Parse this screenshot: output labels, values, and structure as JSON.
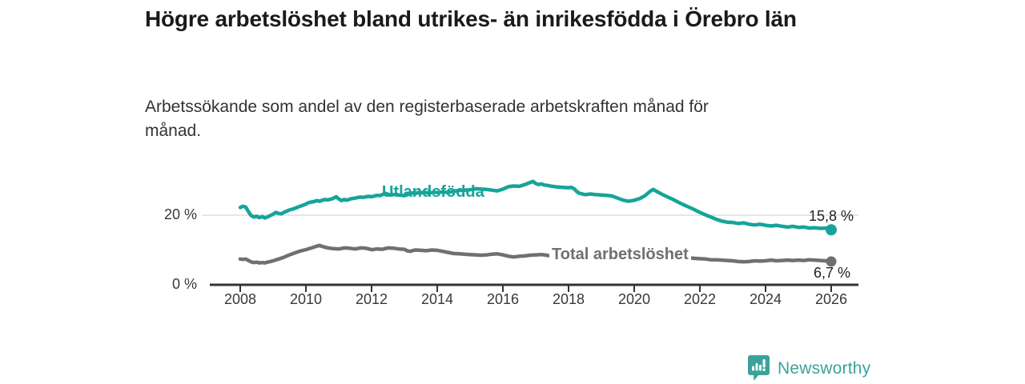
{
  "header": {
    "title": "Högre arbetslöshet bland utrikes- än inrikesfödda i Örebro län",
    "subtitle": "Arbetssökande som andel av den registerbaserade arbetskraften månad för månad."
  },
  "footer": {
    "brand": "Newsworthy",
    "logo_icon": "bar-chart-exclamation-pin-icon"
  },
  "colors": {
    "accent_teal": "#16a49a",
    "line_gray": "#707070",
    "axis": "#333333",
    "gridline": "#dddddd",
    "title_text": "#1a1a1a",
    "body_text": "#333333",
    "brand_teal": "#3ba29a"
  },
  "chart_data": {
    "type": "line",
    "title": "Högre arbetslöshet bland utrikes- än inrikesfödda i Örebro län",
    "subtitle": "Arbetssökande som andel av den registerbaserade arbetskraften månad för månad.",
    "xlabel": "",
    "ylabel": "",
    "x_ticks": [
      2008,
      2010,
      2012,
      2014,
      2016,
      2018,
      2020,
      2022,
      2024,
      2026
    ],
    "y_ticks": [
      {
        "value": 0,
        "label": "0 %"
      },
      {
        "value": 20,
        "label": "20 %"
      }
    ],
    "xlim": [
      2007.1,
      2026.8
    ],
    "ylim": [
      0,
      30
    ],
    "grid": "single-horizontal-line-at-20",
    "legend": "inline-series-labels",
    "series": [
      {
        "name": "Utlandsfödda",
        "color": "#16a49a",
        "end_value": 15.8,
        "end_label": "15,8 %",
        "points": [
          [
            2008.0,
            22.2
          ],
          [
            2008.08,
            22.6
          ],
          [
            2008.17,
            22.3
          ],
          [
            2008.25,
            21.0
          ],
          [
            2008.33,
            19.9
          ],
          [
            2008.42,
            19.5
          ],
          [
            2008.5,
            19.7
          ],
          [
            2008.58,
            19.3
          ],
          [
            2008.67,
            19.6
          ],
          [
            2008.75,
            19.2
          ],
          [
            2008.83,
            19.5
          ],
          [
            2008.92,
            19.9
          ],
          [
            2009.0,
            20.3
          ],
          [
            2009.08,
            20.8
          ],
          [
            2009.17,
            20.5
          ],
          [
            2009.25,
            20.4
          ],
          [
            2009.33,
            20.8
          ],
          [
            2009.42,
            21.2
          ],
          [
            2009.5,
            21.5
          ],
          [
            2009.58,
            21.7
          ],
          [
            2009.67,
            22.0
          ],
          [
            2009.75,
            22.3
          ],
          [
            2009.83,
            22.6
          ],
          [
            2009.92,
            22.9
          ],
          [
            2010.0,
            23.2
          ],
          [
            2010.08,
            23.6
          ],
          [
            2010.17,
            23.8
          ],
          [
            2010.25,
            23.9
          ],
          [
            2010.33,
            24.2
          ],
          [
            2010.42,
            24.0
          ],
          [
            2010.5,
            24.3
          ],
          [
            2010.58,
            24.5
          ],
          [
            2010.67,
            24.4
          ],
          [
            2010.75,
            24.6
          ],
          [
            2010.83,
            24.8
          ],
          [
            2010.92,
            25.3
          ],
          [
            2011.0,
            24.7
          ],
          [
            2011.08,
            24.2
          ],
          [
            2011.17,
            24.5
          ],
          [
            2011.25,
            24.3
          ],
          [
            2011.33,
            24.6
          ],
          [
            2011.42,
            24.8
          ],
          [
            2011.5,
            24.9
          ],
          [
            2011.58,
            25.1
          ],
          [
            2011.67,
            25.2
          ],
          [
            2011.75,
            25.1
          ],
          [
            2011.83,
            25.3
          ],
          [
            2011.92,
            25.4
          ],
          [
            2012.0,
            25.3
          ],
          [
            2012.08,
            25.5
          ],
          [
            2012.17,
            25.7
          ],
          [
            2012.25,
            25.6
          ],
          [
            2012.33,
            25.9
          ],
          [
            2012.42,
            26.3
          ],
          [
            2012.5,
            26.0
          ],
          [
            2012.58,
            25.8
          ],
          [
            2012.67,
            25.9
          ],
          [
            2012.75,
            26.0
          ],
          [
            2012.83,
            25.8
          ],
          [
            2012.92,
            25.7
          ],
          [
            2013.0,
            25.6
          ],
          [
            2013.08,
            25.9
          ],
          [
            2013.17,
            26.2
          ],
          [
            2013.25,
            26.4
          ],
          [
            2013.33,
            26.2
          ],
          [
            2013.42,
            26.5
          ],
          [
            2013.5,
            26.4
          ],
          [
            2013.58,
            26.6
          ],
          [
            2013.67,
            26.5
          ],
          [
            2013.75,
            26.4
          ],
          [
            2013.83,
            26.5
          ],
          [
            2013.92,
            26.6
          ],
          [
            2014.0,
            26.5
          ],
          [
            2014.17,
            26.7
          ],
          [
            2014.33,
            26.5
          ],
          [
            2014.5,
            26.9
          ],
          [
            2014.67,
            27.1
          ],
          [
            2014.83,
            27.2
          ],
          [
            2015.0,
            27.3
          ],
          [
            2015.17,
            27.6
          ],
          [
            2015.33,
            27.5
          ],
          [
            2015.5,
            27.4
          ],
          [
            2015.67,
            27.2
          ],
          [
            2015.83,
            27.0
          ],
          [
            2016.0,
            27.5
          ],
          [
            2016.17,
            28.2
          ],
          [
            2016.33,
            28.4
          ],
          [
            2016.5,
            28.3
          ],
          [
            2016.67,
            28.8
          ],
          [
            2016.83,
            29.4
          ],
          [
            2016.92,
            29.7
          ],
          [
            2017.0,
            29.1
          ],
          [
            2017.08,
            28.8
          ],
          [
            2017.17,
            29.0
          ],
          [
            2017.25,
            28.7
          ],
          [
            2017.33,
            28.6
          ],
          [
            2017.5,
            28.3
          ],
          [
            2017.67,
            28.1
          ],
          [
            2017.83,
            28.0
          ],
          [
            2018.0,
            27.9
          ],
          [
            2018.08,
            28.0
          ],
          [
            2018.17,
            27.6
          ],
          [
            2018.25,
            26.8
          ],
          [
            2018.33,
            26.3
          ],
          [
            2018.5,
            25.9
          ],
          [
            2018.67,
            26.1
          ],
          [
            2018.83,
            25.9
          ],
          [
            2019.0,
            25.8
          ],
          [
            2019.17,
            25.7
          ],
          [
            2019.33,
            25.5
          ],
          [
            2019.5,
            24.9
          ],
          [
            2019.67,
            24.3
          ],
          [
            2019.83,
            24.0
          ],
          [
            2020.0,
            24.3
          ],
          [
            2020.17,
            24.8
          ],
          [
            2020.33,
            25.6
          ],
          [
            2020.5,
            27.0
          ],
          [
            2020.58,
            27.4
          ],
          [
            2020.67,
            26.9
          ],
          [
            2020.83,
            26.1
          ],
          [
            2021.0,
            25.3
          ],
          [
            2021.17,
            24.6
          ],
          [
            2021.33,
            23.8
          ],
          [
            2021.5,
            23.0
          ],
          [
            2021.67,
            22.3
          ],
          [
            2021.83,
            21.6
          ],
          [
            2022.0,
            20.8
          ],
          [
            2022.17,
            20.1
          ],
          [
            2022.33,
            19.5
          ],
          [
            2022.5,
            18.8
          ],
          [
            2022.67,
            18.3
          ],
          [
            2022.83,
            18.0
          ],
          [
            2023.0,
            17.9
          ],
          [
            2023.17,
            17.6
          ],
          [
            2023.33,
            17.8
          ],
          [
            2023.5,
            17.4
          ],
          [
            2023.67,
            17.2
          ],
          [
            2023.83,
            17.4
          ],
          [
            2024.0,
            17.1
          ],
          [
            2024.17,
            16.9
          ],
          [
            2024.33,
            17.1
          ],
          [
            2024.5,
            16.8
          ],
          [
            2024.67,
            16.6
          ],
          [
            2024.83,
            16.8
          ],
          [
            2025.0,
            16.5
          ],
          [
            2025.17,
            16.6
          ],
          [
            2025.33,
            16.3
          ],
          [
            2025.5,
            16.4
          ],
          [
            2025.67,
            16.2
          ],
          [
            2025.83,
            16.3
          ],
          [
            2026.0,
            15.8
          ]
        ]
      },
      {
        "name": "Total arbetslöshet",
        "color": "#707070",
        "end_value": 6.7,
        "end_label": "6,7 %",
        "points": [
          [
            2008.0,
            7.4
          ],
          [
            2008.08,
            7.3
          ],
          [
            2008.17,
            7.4
          ],
          [
            2008.25,
            7.0
          ],
          [
            2008.33,
            6.6
          ],
          [
            2008.42,
            6.4
          ],
          [
            2008.5,
            6.5
          ],
          [
            2008.58,
            6.3
          ],
          [
            2008.67,
            6.4
          ],
          [
            2008.75,
            6.3
          ],
          [
            2008.83,
            6.5
          ],
          [
            2008.92,
            6.7
          ],
          [
            2009.0,
            6.9
          ],
          [
            2009.17,
            7.4
          ],
          [
            2009.33,
            7.9
          ],
          [
            2009.5,
            8.6
          ],
          [
            2009.67,
            9.2
          ],
          [
            2009.83,
            9.7
          ],
          [
            2010.0,
            10.1
          ],
          [
            2010.17,
            10.6
          ],
          [
            2010.33,
            11.1
          ],
          [
            2010.42,
            11.3
          ],
          [
            2010.5,
            11.0
          ],
          [
            2010.67,
            10.6
          ],
          [
            2010.83,
            10.4
          ],
          [
            2011.0,
            10.3
          ],
          [
            2011.17,
            10.6
          ],
          [
            2011.33,
            10.5
          ],
          [
            2011.5,
            10.3
          ],
          [
            2011.67,
            10.6
          ],
          [
            2011.83,
            10.5
          ],
          [
            2012.0,
            10.1
          ],
          [
            2012.17,
            10.3
          ],
          [
            2012.33,
            10.2
          ],
          [
            2012.5,
            10.6
          ],
          [
            2012.67,
            10.5
          ],
          [
            2012.83,
            10.3
          ],
          [
            2013.0,
            10.2
          ],
          [
            2013.08,
            9.8
          ],
          [
            2013.17,
            9.6
          ],
          [
            2013.33,
            10.0
          ],
          [
            2013.5,
            9.9
          ],
          [
            2013.67,
            9.8
          ],
          [
            2013.83,
            10.0
          ],
          [
            2014.0,
            9.9
          ],
          [
            2014.17,
            9.6
          ],
          [
            2014.33,
            9.3
          ],
          [
            2014.5,
            9.0
          ],
          [
            2014.67,
            8.9
          ],
          [
            2014.83,
            8.8
          ],
          [
            2015.0,
            8.7
          ],
          [
            2015.17,
            8.6
          ],
          [
            2015.33,
            8.5
          ],
          [
            2015.5,
            8.6
          ],
          [
            2015.67,
            8.8
          ],
          [
            2015.83,
            8.9
          ],
          [
            2016.0,
            8.6
          ],
          [
            2016.17,
            8.2
          ],
          [
            2016.33,
            8.0
          ],
          [
            2016.5,
            8.2
          ],
          [
            2016.67,
            8.3
          ],
          [
            2016.83,
            8.5
          ],
          [
            2017.0,
            8.6
          ],
          [
            2017.17,
            8.7
          ],
          [
            2017.33,
            8.5
          ],
          [
            2017.5,
            8.2
          ],
          [
            2017.67,
            8.0
          ],
          [
            2017.83,
            7.9
          ],
          [
            2018.0,
            7.9
          ],
          [
            2018.33,
            7.8
          ],
          [
            2018.67,
            7.7
          ],
          [
            2019.0,
            7.6
          ],
          [
            2019.33,
            7.5
          ],
          [
            2019.67,
            7.5
          ],
          [
            2020.0,
            7.7
          ],
          [
            2020.33,
            8.2
          ],
          [
            2020.5,
            8.6
          ],
          [
            2020.67,
            8.5
          ],
          [
            2021.0,
            8.2
          ],
          [
            2021.33,
            7.9
          ],
          [
            2021.67,
            7.7
          ],
          [
            2022.0,
            7.5
          ],
          [
            2022.17,
            7.4
          ],
          [
            2022.33,
            7.2
          ],
          [
            2022.5,
            7.2
          ],
          [
            2022.67,
            7.1
          ],
          [
            2022.83,
            7.0
          ],
          [
            2023.0,
            6.9
          ],
          [
            2023.17,
            6.7
          ],
          [
            2023.33,
            6.6
          ],
          [
            2023.5,
            6.7
          ],
          [
            2023.67,
            6.9
          ],
          [
            2023.83,
            6.8
          ],
          [
            2024.0,
            6.9
          ],
          [
            2024.17,
            7.1
          ],
          [
            2024.33,
            6.9
          ],
          [
            2024.5,
            7.0
          ],
          [
            2024.67,
            7.1
          ],
          [
            2024.83,
            7.0
          ],
          [
            2025.0,
            7.1
          ],
          [
            2025.17,
            7.0
          ],
          [
            2025.33,
            7.2
          ],
          [
            2025.5,
            7.1
          ],
          [
            2025.67,
            7.0
          ],
          [
            2025.83,
            6.9
          ],
          [
            2026.0,
            6.7
          ]
        ]
      }
    ]
  }
}
